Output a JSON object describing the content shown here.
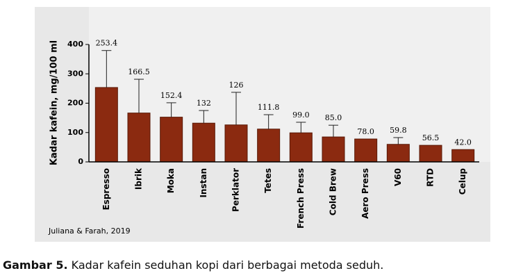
{
  "chart_data": {
    "type": "bar",
    "y_label": "Kadar kafein, mg/100 ml",
    "source": "Juliana & Farah, 2019",
    "categories": [
      "Espresso",
      "Ibrik",
      "Moka",
      "Instan",
      "Perklator",
      "Tetes",
      "French Press",
      "Cold Brew",
      "Aero Press",
      "V60",
      "RTD",
      "Celup"
    ],
    "values": [
      253.4,
      166.5,
      152.4,
      132,
      126,
      111.8,
      99.0,
      85.0,
      78.0,
      59.8,
      56.5,
      42.0
    ],
    "value_labels": [
      "253.4",
      "166.5",
      "152.4",
      "132",
      "126",
      "111.8",
      "99.0",
      "85.0",
      "78.0",
      "59.8",
      "56.5",
      "42.0"
    ],
    "errors": [
      126,
      115,
      49,
      43,
      111,
      49,
      36,
      40,
      null,
      23,
      null,
      null
    ],
    "color": "#8b2a10",
    "ylim": [
      0,
      400
    ],
    "yticks": [
      0,
      100,
      200,
      300,
      400
    ]
  },
  "caption": {
    "label": "Gambar 5.",
    "text": "Kadar kafein seduhan kopi dari berbagai metoda seduh."
  }
}
